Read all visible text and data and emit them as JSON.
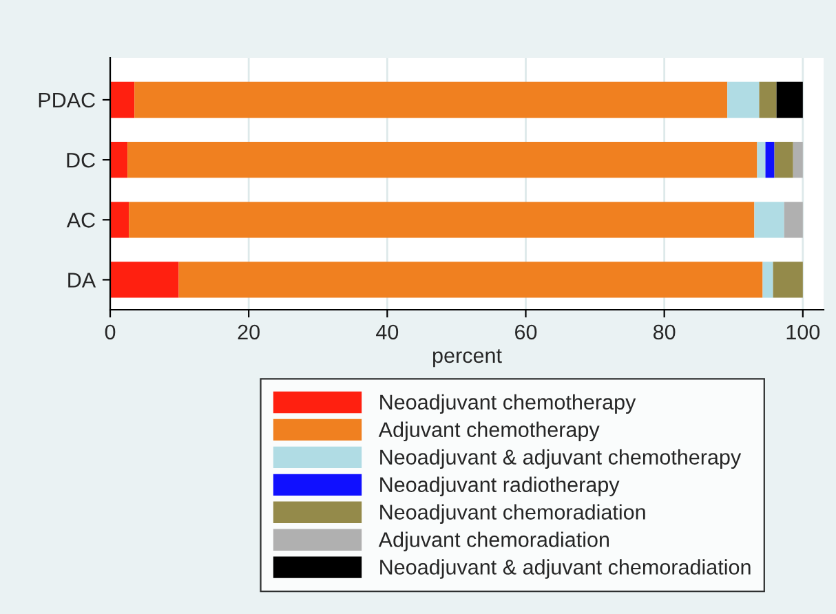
{
  "chart_data": {
    "type": "bar",
    "orientation": "horizontal",
    "stacked": true,
    "xlabel": "percent",
    "categories": [
      "PDAC",
      "DC",
      "AC",
      "DA"
    ],
    "series": [
      {
        "name": "Neoadjuvant chemotherapy",
        "color": "#ff2010",
        "values": [
          3.5,
          2.5,
          2.7,
          9.9
        ]
      },
      {
        "name": "Adjuvant chemotherapy",
        "color": "#f08020",
        "values": [
          85.6,
          90.9,
          90.3,
          84.3
        ]
      },
      {
        "name": "Neoadjuvant & adjuvant chemotherapy",
        "color": "#b0dce4",
        "values": [
          4.6,
          1.2,
          4.3,
          1.5
        ]
      },
      {
        "name": "Neoadjuvant radiotherapy",
        "color": "#1010ff",
        "values": [
          0,
          1.3,
          0,
          0
        ]
      },
      {
        "name": "Neoadjuvant chemoradiation",
        "color": "#948a4a",
        "values": [
          2.5,
          2.7,
          0,
          4.3
        ]
      },
      {
        "name": "Adjuvant chemoradiation",
        "color": "#b0b0b0",
        "values": [
          0,
          1.4,
          2.7,
          0
        ]
      },
      {
        "name": "Neoadjuvant & adjuvant chemoradiation",
        "color": "#000000",
        "values": [
          3.8,
          0,
          0,
          0
        ]
      }
    ],
    "xlim": [
      0,
      103
    ],
    "xticks": [
      0,
      20,
      40,
      60,
      80,
      100
    ],
    "grid": "x",
    "legend": "bottom"
  }
}
